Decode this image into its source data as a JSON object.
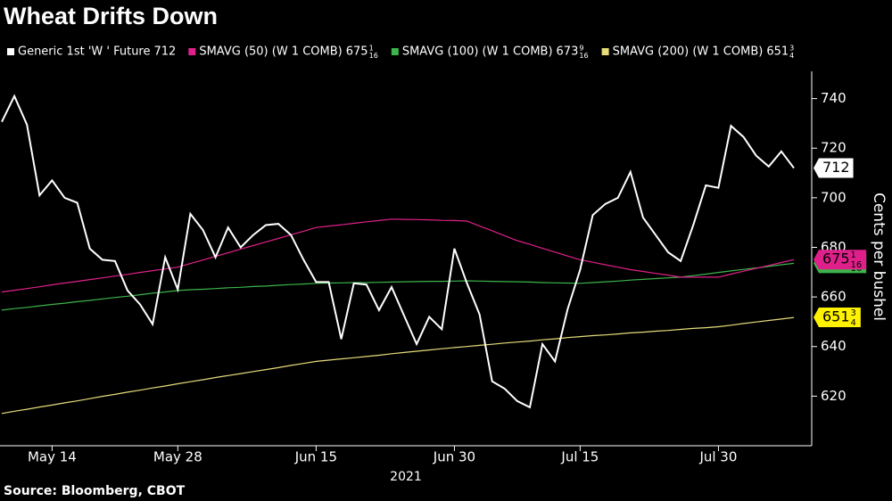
{
  "chart_data": {
    "type": "line",
    "title": "Wheat Drifts Down",
    "source": "Source: Bloomberg, CBOT",
    "xlabel": "2021",
    "ylabel": "Cents per bushel",
    "categories": [
      "2021-05-10",
      "2021-05-11",
      "2021-05-12",
      "2021-05-13",
      "2021-05-14",
      "2021-05-17",
      "2021-05-18",
      "2021-05-19",
      "2021-05-20",
      "2021-05-21",
      "2021-05-24",
      "2021-05-25",
      "2021-05-26",
      "2021-05-27",
      "2021-05-28",
      "2021-06-01",
      "2021-06-02",
      "2021-06-03",
      "2021-06-04",
      "2021-06-07",
      "2021-06-08",
      "2021-06-09",
      "2021-06-10",
      "2021-06-11",
      "2021-06-14",
      "2021-06-15",
      "2021-06-16",
      "2021-06-17",
      "2021-06-18",
      "2021-06-21",
      "2021-06-22",
      "2021-06-23",
      "2021-06-24",
      "2021-06-25",
      "2021-06-28",
      "2021-06-29",
      "2021-06-30",
      "2021-07-01",
      "2021-07-02",
      "2021-07-06",
      "2021-07-07",
      "2021-07-08",
      "2021-07-09",
      "2021-07-12",
      "2021-07-13",
      "2021-07-14",
      "2021-07-15",
      "2021-07-16",
      "2021-07-19",
      "2021-07-20",
      "2021-07-21",
      "2021-07-22",
      "2021-07-23",
      "2021-07-26",
      "2021-07-27",
      "2021-07-28",
      "2021-07-29",
      "2021-07-30",
      "2021-08-02",
      "2021-08-03",
      "2021-08-04",
      "2021-08-05",
      "2021-08-06",
      "2021-08-09"
    ],
    "xticks": [
      {
        "value": "2021-05-14",
        "label": "May 14"
      },
      {
        "value": "2021-05-28",
        "label": "May 28"
      },
      {
        "value": "2021-06-15",
        "label": "Jun 15"
      },
      {
        "value": "2021-06-30",
        "label": "Jun 30"
      },
      {
        "value": "2021-07-15",
        "label": "Jul 15"
      },
      {
        "value": "2021-07-30",
        "label": "Jul 30"
      }
    ],
    "ylim": [
      600,
      751
    ],
    "yticks": [
      620,
      640,
      660,
      680,
      700,
      720,
      740
    ],
    "grid": false,
    "series": [
      {
        "name": "Generic 1st 'W ' Future",
        "color": "#ffffff",
        "label_fill": "#ffffff",
        "value_label": {
          "whole": "712"
        },
        "values": [
          730.6,
          741,
          729.5,
          701,
          707,
          700,
          698,
          679.5,
          675,
          674.5,
          662.6,
          657,
          649,
          676,
          663,
          693.5,
          687,
          676,
          688,
          680,
          685,
          689,
          689.5,
          685,
          675,
          666,
          666,
          643,
          665.5,
          665,
          654.7,
          664,
          652.5,
          641,
          652,
          647,
          679.5,
          665.5,
          653,
          626,
          623,
          618,
          615.5,
          641,
          634,
          655,
          671,
          693,
          697.5,
          700,
          710.4,
          692,
          685,
          678,
          674.5,
          689,
          705,
          704,
          729,
          724.5,
          717,
          712.6,
          718.7,
          712
        ]
      },
      {
        "name": "SMAVG (50) (W 1 COMB)",
        "color": "#e0208a",
        "label_fill": "#e0208a",
        "value_label": {
          "whole": "675",
          "num": "1",
          "den": "16"
        },
        "values": [
          662,
          662.7,
          663.4,
          664.1,
          664.9,
          665.6,
          666.3,
          667,
          667.7,
          668.4,
          669.1,
          669.9,
          670.6,
          671.3,
          672,
          673.5,
          674.9,
          676.4,
          677.8,
          679.3,
          680.7,
          682.2,
          683.6,
          685.1,
          686.5,
          688,
          688.6,
          689.1,
          689.7,
          690.3,
          690.8,
          691.4,
          691.3,
          691.2,
          691.1,
          690.9,
          690.8,
          690.6,
          688.6,
          686.7,
          684.7,
          682.7,
          681.2,
          679.6,
          678.1,
          676.5,
          675,
          674,
          673,
          672,
          671,
          670.3,
          669.5,
          668.8,
          668,
          668,
          668,
          668,
          669.2,
          670.4,
          671.5,
          672.7,
          673.9,
          675.0625
        ]
      },
      {
        "name": "SMAVG (100) (W 1 COMB)",
        "color": "#3cb44b",
        "label_fill": "#3cb44b",
        "value_label": {
          "whole": "673",
          "num": "9",
          "den": "16"
        },
        "values": [
          654.7,
          655.3,
          655.8,
          656.4,
          657,
          657.5,
          658.1,
          658.6,
          659.2,
          659.8,
          660.3,
          660.9,
          661.5,
          662,
          662.6,
          662.9,
          663.1,
          663.4,
          663.7,
          663.9,
          664.2,
          664.4,
          664.7,
          665,
          665.2,
          665.5,
          665.6,
          665.7,
          665.8,
          665.8,
          665.9,
          666,
          666.1,
          666.2,
          666.3,
          666.3,
          666.4,
          666.5,
          666.4,
          666.3,
          666.2,
          666.1,
          666,
          665.8,
          665.7,
          665.6,
          665.5,
          665.8,
          666.1,
          666.4,
          666.8,
          667.1,
          667.4,
          667.7,
          668,
          668.6,
          669.2,
          669.9,
          670.5,
          671.1,
          671.7,
          672.3,
          673,
          673.5625
        ]
      },
      {
        "name": "SMAVG (200) (W 1 COMB)",
        "color": "#e6dc7a",
        "label_fill": "#fff200",
        "value_label": {
          "whole": "651",
          "num": "3",
          "den": "4"
        },
        "values": [
          613,
          613.9,
          614.7,
          615.6,
          616.4,
          617.3,
          618.1,
          619,
          619.9,
          620.7,
          621.6,
          622.4,
          623.3,
          624.1,
          625,
          625.8,
          626.6,
          627.5,
          628.3,
          629.1,
          629.9,
          630.7,
          631.5,
          632.4,
          633.2,
          634,
          634.5,
          635,
          635.5,
          636,
          636.5,
          637.1,
          637.6,
          638.1,
          638.6,
          639.1,
          639.6,
          640,
          640.5,
          640.9,
          641.4,
          641.8,
          642.2,
          642.7,
          643.1,
          643.6,
          644,
          644.4,
          644.7,
          645.1,
          645.5,
          645.8,
          646.2,
          646.5,
          646.9,
          647.3,
          647.6,
          648,
          648.6,
          649.3,
          649.9,
          650.5,
          651.1,
          651.75
        ]
      }
    ]
  }
}
